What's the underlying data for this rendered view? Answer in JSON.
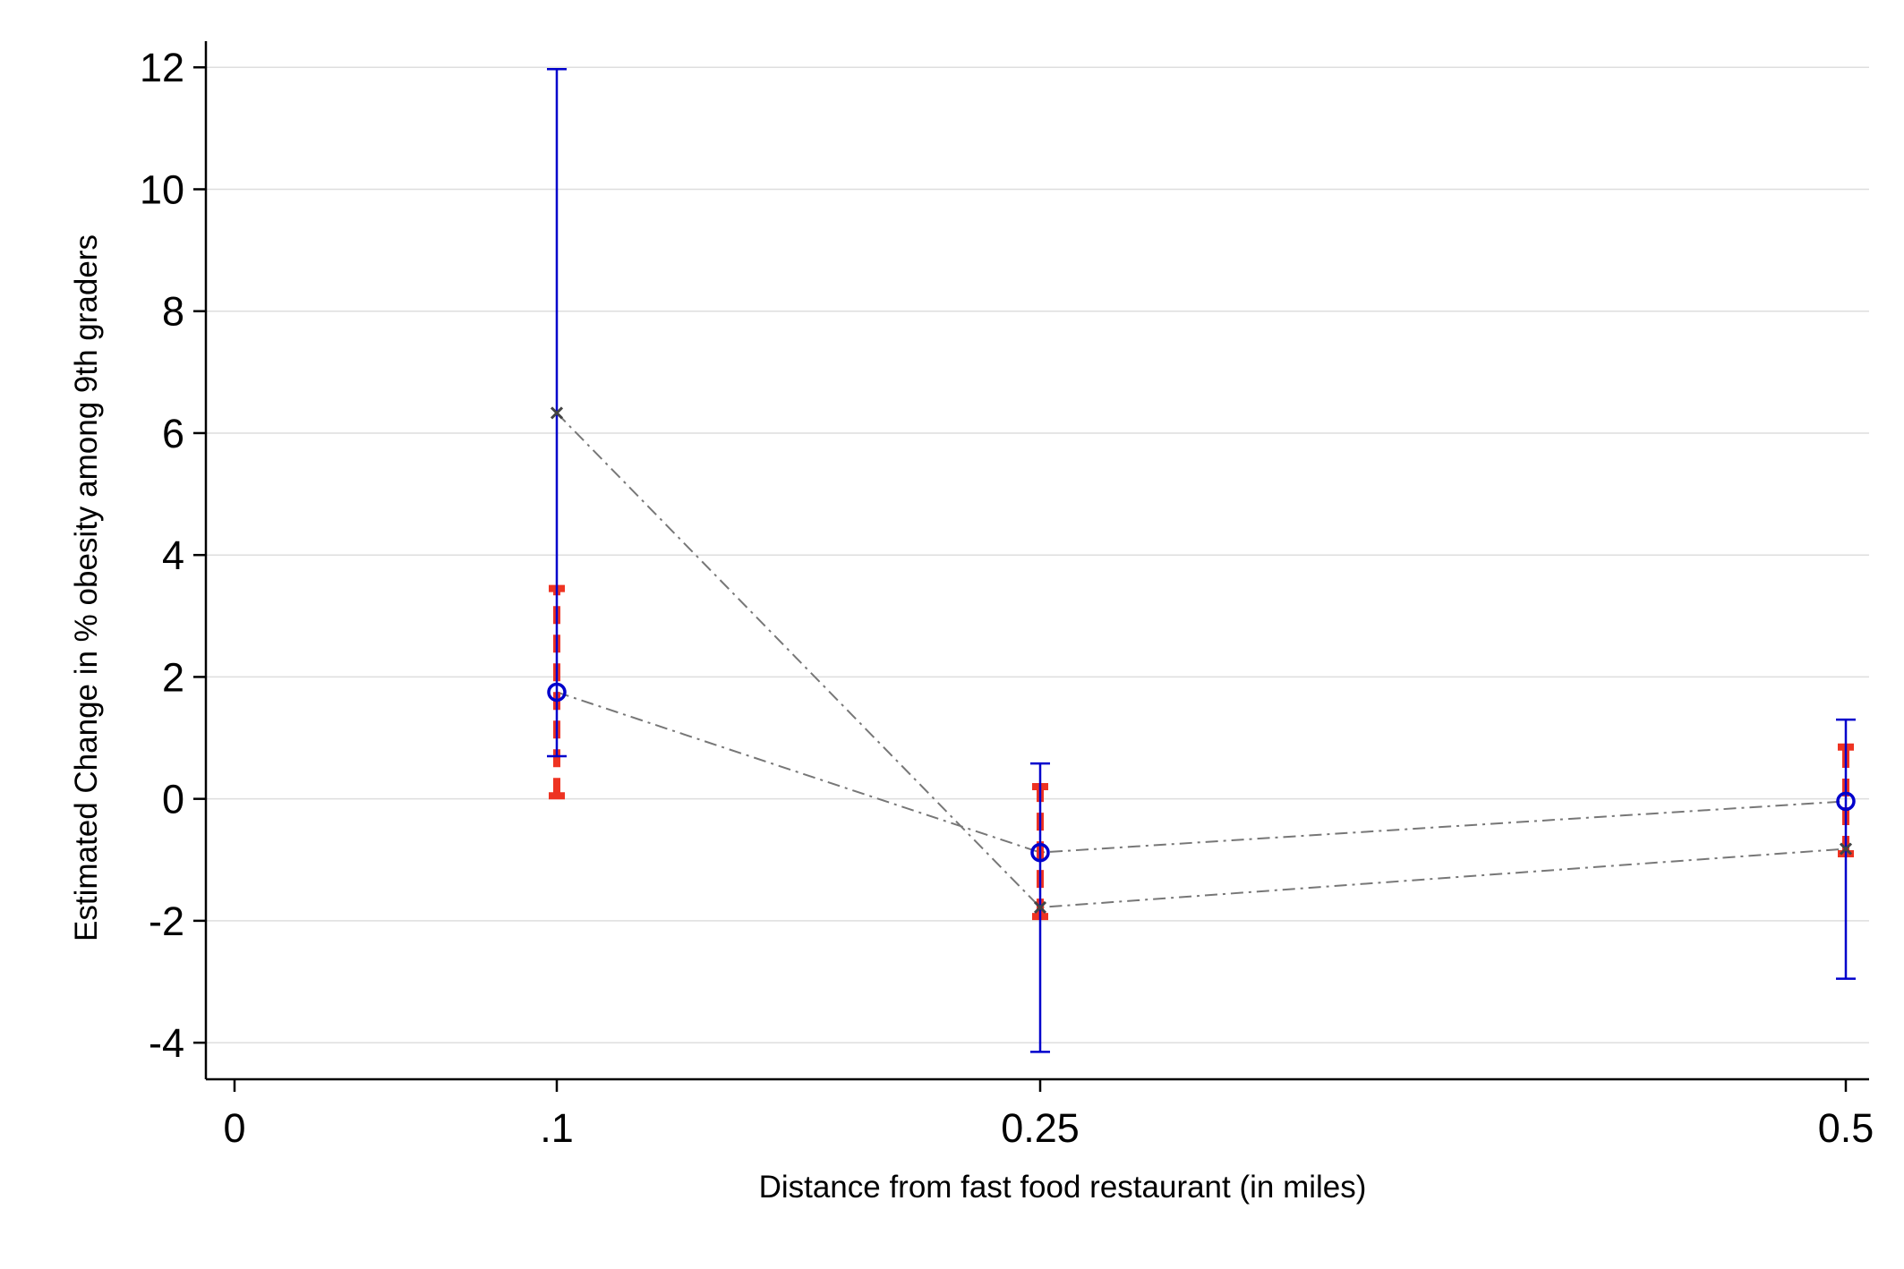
{
  "chart_data": {
    "type": "scatter",
    "title": "",
    "xlabel": "Distance from fast food restaurant (in miles)",
    "ylabel": "Estimated Change in % obesity among 9th graders",
    "xlim": [
      0,
      0.5
    ],
    "ylim": [
      -4.6,
      12.4
    ],
    "x_ticks": [
      {
        "value": 0,
        "label": "0"
      },
      {
        "value": 0.1,
        "label": ".1"
      },
      {
        "value": 0.25,
        "label": "0.25"
      },
      {
        "value": 0.5,
        "label": "0.5"
      }
    ],
    "y_ticks": [
      {
        "value": -4,
        "label": "-4"
      },
      {
        "value": -2,
        "label": "-2"
      },
      {
        "value": 0,
        "label": "0"
      },
      {
        "value": 2,
        "label": "2"
      },
      {
        "value": 4,
        "label": "4"
      },
      {
        "value": 6,
        "label": "6"
      },
      {
        "value": 8,
        "label": "8"
      },
      {
        "value": 10,
        "label": "10"
      },
      {
        "value": 12,
        "label": "12"
      }
    ],
    "grid": true,
    "legend": "none",
    "series": [
      {
        "marker": "circle",
        "color": "#0000cc",
        "line_color": "#777777",
        "points": [
          {
            "x": 0.1,
            "y": 1.75,
            "ci_low": 0.7,
            "ci_high": 11.97
          },
          {
            "x": 0.25,
            "y": -0.88,
            "ci_low": -4.15,
            "ci_high": 0.58
          },
          {
            "x": 0.5,
            "y": -0.04,
            "ci_low": -2.95,
            "ci_high": 1.3
          }
        ]
      },
      {
        "marker": "x",
        "color": "#444444",
        "line_color": "#777777",
        "points": [
          {
            "x": 0.1,
            "y": 6.33,
            "ci_low": 0.05,
            "ci_high": 3.45
          },
          {
            "x": 0.25,
            "y": -1.78,
            "ci_low": -1.93,
            "ci_high": 0.2
          },
          {
            "x": 0.5,
            "y": -0.82,
            "ci_low": -0.9,
            "ci_high": 0.85
          }
        ],
        "ci_color": "#ee3322"
      }
    ]
  }
}
